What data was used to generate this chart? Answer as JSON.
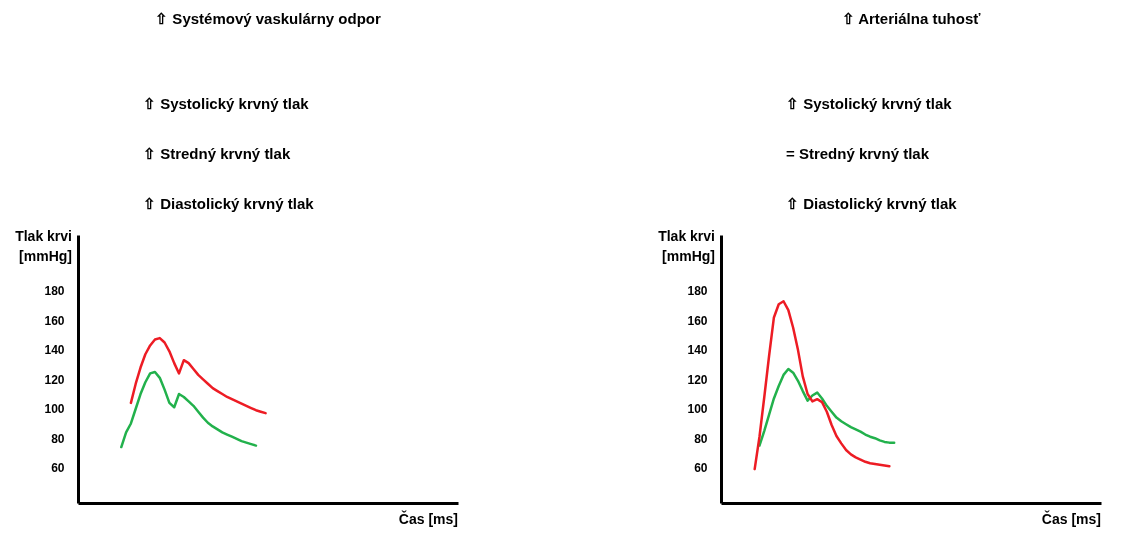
{
  "chart_data": [
    {
      "type": "line",
      "title": "⇧ Systémový vaskulárny odpor",
      "annotations": [
        "⇧ Systolický krvný tlak",
        "⇧ Stredný krvný tlak",
        "⇧ Diastolický krvný tlak"
      ],
      "ylabel": "Tlak krvi\n[mmHg]",
      "xlabel": "Čas [ms]",
      "categories": [
        null,
        null,
        null,
        null,
        null,
        null,
        null,
        null,
        null,
        null,
        null,
        null,
        null,
        null,
        null,
        null,
        null,
        null,
        null,
        null,
        null,
        null,
        null,
        null,
        null,
        null,
        null,
        null,
        null,
        null,
        null,
        null,
        null,
        null,
        null,
        null,
        null,
        null,
        null,
        null,
        null,
        null,
        null,
        null,
        null,
        null,
        null,
        null,
        null,
        null,
        null,
        null,
        null,
        null,
        null,
        null,
        null,
        null,
        null,
        null,
        null,
        null,
        null,
        null,
        null,
        null,
        null,
        null,
        null,
        null,
        null,
        null,
        null,
        null,
        null,
        null,
        null,
        null,
        null,
        null
      ],
      "series": [
        {
          "color": "#22b14c",
          "values": [
            null,
            null,
            null,
            null,
            null,
            null,
            null,
            null,
            null,
            74,
            84,
            90,
            100,
            110,
            118,
            124,
            125,
            121,
            113,
            104,
            101,
            110,
            108,
            105,
            102,
            98,
            94,
            90.5,
            88,
            86,
            84,
            82.5,
            81,
            79.5,
            78,
            77,
            76,
            75,
            null,
            null,
            null,
            null,
            null,
            null,
            null,
            null,
            null,
            null,
            null,
            null,
            null,
            null,
            null,
            null,
            null,
            null,
            null,
            null,
            null,
            null,
            null,
            null,
            null,
            null,
            null,
            null,
            null,
            null,
            null,
            null,
            null,
            null,
            null,
            null,
            null,
            null,
            null,
            null,
            null,
            null
          ]
        },
        {
          "color": "#ed1c24",
          "values": [
            null,
            null,
            null,
            null,
            null,
            null,
            null,
            null,
            null,
            null,
            null,
            104,
            117,
            128,
            137,
            143,
            147,
            148,
            145,
            139,
            131,
            124,
            133,
            131,
            127,
            123,
            120,
            117,
            114,
            112,
            110,
            108,
            106.5,
            105,
            103.5,
            102,
            100.5,
            99,
            98,
            97,
            null,
            null,
            null,
            null,
            null,
            null,
            null,
            null,
            null,
            null,
            null,
            null,
            null,
            null,
            null,
            null,
            null,
            null,
            null,
            null,
            null,
            null,
            null,
            null,
            null,
            null,
            null,
            null,
            null,
            null,
            null,
            null,
            null,
            null,
            null,
            null,
            null,
            null,
            null,
            null
          ]
        }
      ],
      "ylim": [
        36,
        218
      ],
      "yticks": [
        60,
        80,
        100,
        120,
        140,
        160,
        180
      ],
      "grid": false,
      "tick_labels": "y",
      "marker": "none",
      "line_style": "solid"
    },
    {
      "type": "line",
      "title": "⇧ Arteriálna tuhosť",
      "annotations": [
        "⇧ Systolický krvný tlak",
        "= Stredný krvný tlak",
        "⇧ Diastolický krvný tlak"
      ],
      "ylabel": "Tlak krvi\n[mmHg]",
      "xlabel": "Čas [ms]",
      "categories": [
        null,
        null,
        null,
        null,
        null,
        null,
        null,
        null,
        null,
        null,
        null,
        null,
        null,
        null,
        null,
        null,
        null,
        null,
        null,
        null,
        null,
        null,
        null,
        null,
        null,
        null,
        null,
        null,
        null,
        null,
        null,
        null,
        null,
        null,
        null,
        null,
        null,
        null,
        null,
        null,
        null,
        null,
        null,
        null,
        null,
        null,
        null,
        null,
        null,
        null,
        null,
        null,
        null,
        null,
        null,
        null,
        null,
        null,
        null,
        null,
        null,
        null,
        null,
        null,
        null,
        null,
        null,
        null,
        null,
        null,
        null,
        null,
        null,
        null,
        null,
        null,
        null,
        null,
        null,
        null
      ],
      "series": [
        {
          "color": "#22b14c",
          "values": [
            null,
            null,
            null,
            null,
            null,
            null,
            null,
            null,
            75,
            85,
            96,
            107,
            115.5,
            123,
            127,
            124.5,
            119,
            112,
            105.5,
            109,
            111,
            107,
            102,
            98,
            94,
            91.5,
            89.5,
            87.5,
            86,
            84.5,
            82.5,
            81,
            80,
            78.5,
            77.5,
            77,
            77,
            null,
            null,
            null,
            null,
            null,
            null,
            null,
            null,
            null,
            null,
            null,
            null,
            null,
            null,
            null,
            null,
            null,
            null,
            null,
            null,
            null,
            null,
            null,
            null,
            null,
            null,
            null,
            null,
            null,
            null,
            null,
            null,
            null,
            null,
            null,
            null,
            null,
            null,
            null,
            null,
            null,
            null,
            null
          ]
        },
        {
          "color": "#ed1c24",
          "values": [
            null,
            null,
            null,
            null,
            null,
            null,
            null,
            59,
            81,
            108,
            136,
            162,
            171,
            173,
            167,
            155,
            140,
            122,
            110,
            105,
            106.5,
            104.5,
            98,
            89,
            81.5,
            76.5,
            72,
            69,
            67,
            65.5,
            64,
            63,
            62.5,
            62,
            61.5,
            61,
            null,
            null,
            null,
            null,
            null,
            null,
            null,
            null,
            null,
            null,
            null,
            null,
            null,
            null,
            null,
            null,
            null,
            null,
            null,
            null,
            null,
            null,
            null,
            null,
            null,
            null,
            null,
            null,
            null,
            null,
            null,
            null,
            null,
            null,
            null,
            null,
            null,
            null,
            null,
            null,
            null,
            null,
            null,
            null
          ]
        }
      ],
      "ylim": [
        36,
        218
      ],
      "yticks": [
        60,
        80,
        100,
        120,
        140,
        160,
        180
      ],
      "grid": false,
      "tick_labels": "y",
      "marker": "none",
      "line_style": "solid"
    }
  ]
}
